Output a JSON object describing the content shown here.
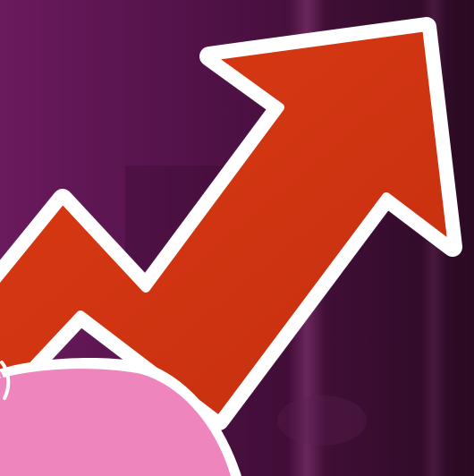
{
  "scene": {
    "subject": "upward-trend-arrow-icon",
    "colors": {
      "background_left": "#6a1a5e",
      "background_mid": "#4a1040",
      "background_right": "#2a0a22",
      "light_streak": "#8a3a78",
      "arrow_fill": "#dc3a14",
      "arrow_fill_dark": "#c42f0f",
      "arrow_outline": "#ffffff",
      "arrow_glow": "#f4d8f0",
      "pink_shape": "#ef85bd",
      "pink_outline": "#ffffff"
    }
  }
}
